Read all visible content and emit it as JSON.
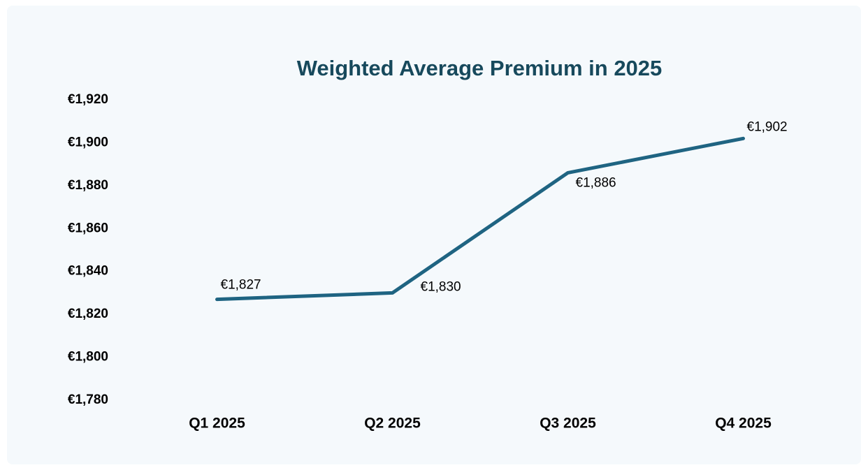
{
  "chart_data": {
    "type": "line",
    "title": "Weighted Average Premium in 2025",
    "categories": [
      "Q1 2025",
      "Q2 2025",
      "Q3 2025",
      "Q4 2025"
    ],
    "values": [
      1827,
      1830,
      1886,
      1902
    ],
    "value_labels": [
      "€1,827",
      "€1,830",
      "€1,886",
      "€1,902"
    ],
    "color": "#1f6482",
    "ylim": [
      1780,
      1920
    ],
    "yticks": [
      {
        "value": 1780,
        "label": "€1,780"
      },
      {
        "value": 1800,
        "label": "€1,800"
      },
      {
        "value": 1820,
        "label": "€1,820"
      },
      {
        "value": 1840,
        "label": "€1,840"
      },
      {
        "value": 1860,
        "label": "€1,860"
      },
      {
        "value": 1880,
        "label": "€1,880"
      },
      {
        "value": 1900,
        "label": "€1,900"
      },
      {
        "value": 1920,
        "label": "€1,920"
      }
    ],
    "grid": false
  }
}
